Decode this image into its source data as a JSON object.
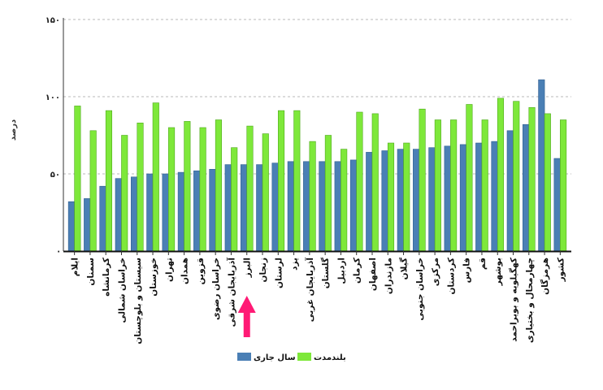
{
  "chart_data": {
    "type": "bar",
    "title": "",
    "xlabel": "",
    "ylabel": "درصد",
    "ylim": [
      0,
      150
    ],
    "yticks": [
      0,
      50,
      100,
      150
    ],
    "ytick_labels": [
      "·",
      "۵۰",
      "۱۰۰",
      "۱۵۰"
    ],
    "grid": true,
    "legend_position": "bottom-center",
    "categories": [
      "ایلام",
      "سمنان",
      "کرمانشاه",
      "خراسان شمالی",
      "سیستان و بلوچستان",
      "خوزستان",
      "تهران",
      "همدان",
      "قزوین",
      "خراسان رضوی",
      "آذربایجان شرقی",
      "البرز",
      "زنجان",
      "لرستان",
      "یزد",
      "آذربایجان غربی",
      "گلستان",
      "اردبیل",
      "کرمان",
      "اصفهان",
      "مازندران",
      "گیلان",
      "خراسان جنوبی",
      "مرکزی",
      "کردستان",
      "فارس",
      "قم",
      "بوشهر",
      "کهگیلویه و بویراحمد",
      "چهارمحال و بختیاری",
      "هرمزگان",
      "کشور"
    ],
    "series": [
      {
        "name": "سال جاری",
        "color": "#4a7fb5",
        "values": [
          32,
          34,
          42,
          47,
          48,
          50,
          50,
          51,
          52,
          53,
          56,
          56,
          56,
          57,
          58,
          58,
          58,
          58,
          59,
          64,
          65,
          66,
          66,
          67,
          68,
          69,
          70,
          71,
          78,
          82,
          111,
          60
        ]
      },
      {
        "name": "بلندمدت",
        "color": "#7ee83a",
        "values": [
          94,
          78,
          91,
          75,
          83,
          96,
          80,
          84,
          80,
          85,
          67,
          81,
          76,
          91,
          91,
          71,
          75,
          66,
          90,
          89,
          70,
          70,
          92,
          85,
          85,
          95,
          85,
          99,
          97,
          93,
          89,
          85
        ]
      }
    ]
  },
  "annotation": {
    "type": "arrow",
    "color": "#ff1a75",
    "points_to": "البرز"
  }
}
